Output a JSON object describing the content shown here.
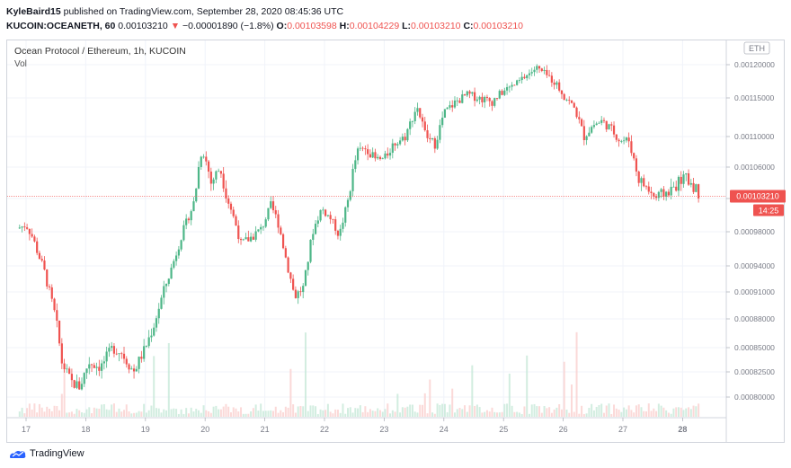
{
  "header": {
    "user": "KyleBaird15",
    "published_text": "published on TradingView.com, September 28, 2020 08:45:36 UTC",
    "symbol_interval": "KUCOIN:OCEANETH, 60",
    "change": "−0.00001890 (−1.8%)",
    "o_label": "O:",
    "o_value": "0.00103598",
    "h_label": "H:",
    "h_value": "0.00104229",
    "l_label": "L:",
    "l_value": "0.00103210",
    "c_label": "C:",
    "c_value": "0.00103210",
    "last_price": "0.00103210"
  },
  "legend": {
    "title": "Ocean Protocol / Ethereum, 1h, KUCOIN",
    "vol": "Vol"
  },
  "footer": {
    "brand": "TradingView"
  },
  "colors": {
    "up": "#4db687",
    "down": "#ef5350",
    "axis": "#787b86",
    "grid": "#f0f3fa"
  },
  "chart_data": {
    "type": "candlestick",
    "currency_badge": "ETH",
    "last_price_label": "0.00103210",
    "countdown_label": "14:25",
    "yticks": [
      "0.00120000",
      "0.00115000",
      "0.00110000",
      "0.00106000",
      "0.00103000",
      "0.00098000",
      "0.00094000",
      "0.00091000",
      "0.00088000",
      "0.00085000",
      "0.00082500",
      "0.00080000"
    ],
    "xticks": [
      "17",
      "18",
      "19",
      "20",
      "21",
      "22",
      "23",
      "24",
      "25",
      "26",
      "27",
      "28"
    ],
    "close_series": [
      [
        16.85,
        0.000985
      ],
      [
        17.0,
        0.00099
      ],
      [
        17.1,
        0.000975
      ],
      [
        17.3,
        0.000935
      ],
      [
        17.5,
        0.00088
      ],
      [
        17.6,
        0.000835
      ],
      [
        17.75,
        0.000815
      ],
      [
        17.9,
        0.00081
      ],
      [
        18.05,
        0.000835
      ],
      [
        18.25,
        0.00083
      ],
      [
        18.45,
        0.00085
      ],
      [
        18.6,
        0.000845
      ],
      [
        18.8,
        0.000825
      ],
      [
        19.0,
        0.00085
      ],
      [
        19.15,
        0.000875
      ],
      [
        19.3,
        0.00091
      ],
      [
        19.45,
        0.00094
      ],
      [
        19.6,
        0.000975
      ],
      [
        19.8,
        0.00102
      ],
      [
        19.95,
        0.001085
      ],
      [
        20.1,
        0.001045
      ],
      [
        20.25,
        0.00106
      ],
      [
        20.45,
        0.00101
      ],
      [
        20.6,
        0.000965
      ],
      [
        20.8,
        0.000975
      ],
      [
        20.95,
        0.000985
      ],
      [
        21.1,
        0.00102
      ],
      [
        21.2,
        0.001
      ],
      [
        21.35,
        0.00095
      ],
      [
        21.5,
        0.000905
      ],
      [
        21.65,
        0.000915
      ],
      [
        21.8,
        0.00098
      ],
      [
        21.95,
        0.001015
      ],
      [
        22.1,
        0.001
      ],
      [
        22.25,
        0.000975
      ],
      [
        22.4,
        0.00103
      ],
      [
        22.55,
        0.00108
      ],
      [
        22.7,
        0.001085
      ],
      [
        22.85,
        0.00107
      ],
      [
        23.0,
        0.00107
      ],
      [
        23.15,
        0.00109
      ],
      [
        23.35,
        0.0011
      ],
      [
        23.55,
        0.00114
      ],
      [
        23.7,
        0.0011
      ],
      [
        23.85,
        0.00109
      ],
      [
        24.0,
        0.00113
      ],
      [
        24.2,
        0.001145
      ],
      [
        24.4,
        0.001155
      ],
      [
        24.6,
        0.00115
      ],
      [
        24.8,
        0.001145
      ],
      [
        25.0,
        0.00116
      ],
      [
        25.2,
        0.00117
      ],
      [
        25.4,
        0.001185
      ],
      [
        25.55,
        0.001195
      ],
      [
        25.7,
        0.001185
      ],
      [
        25.85,
        0.001175
      ],
      [
        26.0,
        0.001155
      ],
      [
        26.2,
        0.001135
      ],
      [
        26.35,
        0.0011
      ],
      [
        26.5,
        0.001115
      ],
      [
        26.65,
        0.00112
      ],
      [
        26.8,
        0.00111
      ],
      [
        26.95,
        0.001095
      ],
      [
        27.1,
        0.001095
      ],
      [
        27.25,
        0.00105
      ],
      [
        27.4,
        0.00104
      ],
      [
        27.55,
        0.00103
      ],
      [
        27.7,
        0.001035
      ],
      [
        27.85,
        0.00104
      ],
      [
        28.0,
        0.00105
      ],
      [
        28.15,
        0.001045
      ],
      [
        28.3,
        0.001032
      ]
    ]
  }
}
